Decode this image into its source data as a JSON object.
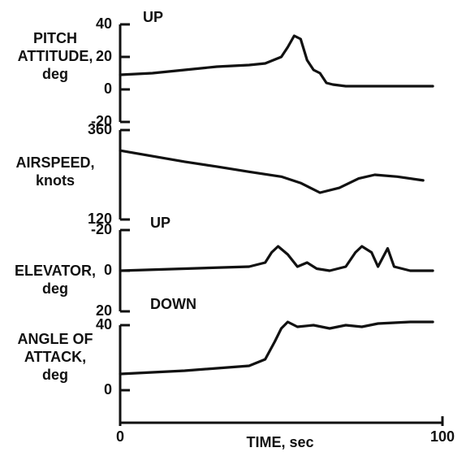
{
  "chart_data": [
    {
      "type": "line",
      "ylabel": [
        "PITCH",
        "ATTITUDE,",
        "deg"
      ],
      "annotations": [
        "UP"
      ],
      "ylim": [
        -20,
        40
      ],
      "yticks": [
        40,
        20,
        0,
        -20
      ],
      "xlim": [
        0,
        100
      ],
      "x": [
        0,
        10,
        20,
        30,
        40,
        45,
        50,
        52,
        54,
        56,
        58,
        60,
        62,
        64,
        66,
        70,
        80,
        90,
        97
      ],
      "values": [
        9,
        10,
        12,
        14,
        15,
        16,
        20,
        26,
        33,
        31,
        18,
        12,
        10,
        4,
        3,
        2,
        2,
        2,
        2
      ]
    },
    {
      "type": "line",
      "ylabel": [
        "AIRSPEED,",
        "knots"
      ],
      "ylim": [
        120,
        360
      ],
      "yticks": [
        360,
        120
      ],
      "xlim": [
        0,
        100
      ],
      "x": [
        0,
        10,
        20,
        30,
        40,
        50,
        56,
        62,
        68,
        74,
        79,
        86,
        94
      ],
      "values": [
        305,
        290,
        275,
        262,
        248,
        235,
        218,
        192,
        205,
        230,
        240,
        235,
        225
      ]
    },
    {
      "type": "line",
      "ylabel": [
        "ELEVATOR,",
        "deg"
      ],
      "annotations": [
        "UP",
        "DOWN"
      ],
      "ylim": [
        20,
        -20
      ],
      "yticks": [
        -20,
        0,
        20
      ],
      "xlim": [
        0,
        100
      ],
      "x": [
        0,
        20,
        40,
        45,
        47,
        49,
        52,
        55,
        58,
        61,
        65,
        70,
        73,
        75,
        78,
        80,
        82,
        83,
        85,
        90,
        97
      ],
      "values": [
        0,
        -1,
        -2,
        -4,
        -9,
        -12,
        -8,
        -2,
        -4,
        -1,
        0,
        -2,
        -9,
        -12,
        -9,
        -2,
        -8,
        -11,
        -2,
        0,
        0
      ]
    },
    {
      "type": "line",
      "ylabel": [
        "ANGLE OF",
        "ATTACK,",
        "deg"
      ],
      "ylim": [
        0,
        40
      ],
      "yticks": [
        40,
        0
      ],
      "xlim": [
        0,
        100
      ],
      "xticks": [
        0,
        100
      ],
      "xlabel": "TIME, sec",
      "x": [
        0,
        20,
        40,
        45,
        48,
        50,
        52,
        55,
        60,
        65,
        70,
        75,
        80,
        90,
        97
      ],
      "values": [
        10,
        12,
        15,
        19,
        30,
        38,
        42,
        39,
        40,
        38,
        40,
        39,
        41,
        42,
        42
      ]
    }
  ]
}
